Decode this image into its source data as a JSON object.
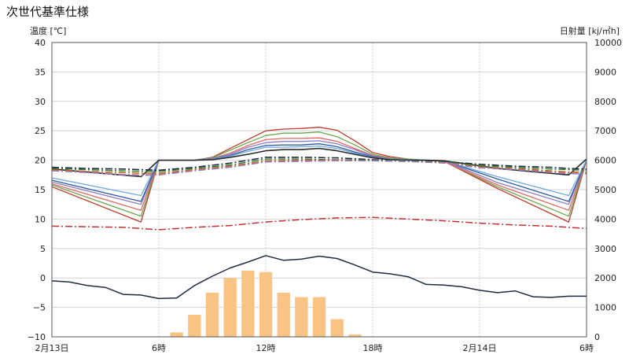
{
  "title": "次世代基準仕様",
  "chart_data": {
    "type": "line",
    "title": "次世代基準仕様",
    "ylabel_left": "温度 [℃]",
    "ylabel_right": "日射量 [kj/㎡h]",
    "ylim_left": [
      -10,
      40
    ],
    "ylim_right": [
      0,
      10000
    ],
    "yticks_left": [
      "40",
      "35",
      "30",
      "25",
      "20",
      "15",
      "10",
      "5",
      "0",
      "−5",
      "−10"
    ],
    "yticks_right": [
      "10000",
      "9000",
      "8000",
      "7000",
      "6000",
      "5000",
      "4000",
      "3000",
      "2000",
      "1000",
      "0"
    ],
    "xlim": [
      0,
      30
    ],
    "xticks": [
      {
        "x": 0,
        "label": "2月13日"
      },
      {
        "x": 6,
        "label": "6時"
      },
      {
        "x": 12,
        "label": "12時"
      },
      {
        "x": 18,
        "label": "18時"
      },
      {
        "x": 24,
        "label": "2月14日"
      },
      {
        "x": 30,
        "label": "6時"
      }
    ],
    "grid": true,
    "solar_bars": {
      "axis": "right",
      "color": "#f9c384",
      "x": [
        7,
        8,
        9,
        10,
        11,
        12,
        13,
        14,
        15,
        16,
        17
      ],
      "values": [
        150,
        750,
        1500,
        2000,
        2250,
        2200,
        1500,
        1350,
        1350,
        600,
        80
      ]
    },
    "series": [
      {
        "color": "#1f2a44",
        "style": "solid",
        "width": 1.5,
        "x": [
          0,
          1,
          2,
          3,
          4,
          5,
          6,
          7,
          8,
          9,
          10,
          11,
          12,
          13,
          14,
          15,
          16,
          17,
          18,
          19,
          20,
          21,
          22,
          23,
          24,
          25,
          26,
          27,
          28,
          29,
          30
        ],
        "y": [
          -0.5,
          -0.7,
          -1.3,
          -1.6,
          -2.8,
          -2.9,
          -3.5,
          -3.4,
          -1.3,
          0.3,
          1.7,
          2.7,
          3.8,
          3.0,
          3.2,
          3.7,
          3.3,
          2.2,
          1.0,
          0.7,
          0.2,
          -1.1,
          -1.2,
          -1.5,
          -2.1,
          -2.5,
          -2.2,
          -3.2,
          -3.3,
          -3.1,
          -3.1
        ]
      },
      {
        "color": "#c03030",
        "style": "dashdot",
        "width": 1.5,
        "x": [
          0,
          2,
          4,
          6,
          8,
          10,
          12,
          14,
          16,
          18,
          20,
          22,
          24,
          26,
          28,
          30
        ],
        "y": [
          8.8,
          8.7,
          8.6,
          8.2,
          8.6,
          8.9,
          9.5,
          9.9,
          10.2,
          10.3,
          10.0,
          9.7,
          9.3,
          9.0,
          8.8,
          8.4
        ]
      },
      {
        "color": "#c0392b",
        "style": "solid",
        "width": 1.3,
        "x": [
          0,
          5,
          6,
          8,
          9,
          10,
          11,
          12,
          13,
          14,
          15,
          16,
          17,
          18,
          19,
          20,
          21,
          22,
          25,
          29,
          30
        ],
        "y": [
          15.5,
          9.5,
          20,
          20,
          20.5,
          22,
          23.5,
          25,
          25.3,
          25.4,
          25.6,
          25.1,
          23.3,
          21.3,
          20.6,
          20.2,
          20,
          19.8,
          15.2,
          9.5,
          20
        ]
      },
      {
        "color": "#6aa84f",
        "style": "solid",
        "width": 1.3,
        "x": [
          0,
          5,
          6,
          8,
          9,
          10,
          11,
          12,
          13,
          14,
          15,
          16,
          17,
          18,
          19,
          20,
          21,
          22,
          25,
          29,
          30
        ],
        "y": [
          15.8,
          10.5,
          20,
          20,
          20.4,
          21.7,
          23.0,
          24.2,
          24.6,
          24.6,
          24.8,
          24.0,
          22.6,
          21.0,
          20.4,
          20.2,
          20,
          19.8,
          15.5,
          10.5,
          20
        ]
      },
      {
        "color": "#e06666",
        "style": "solid",
        "width": 1.3,
        "x": [
          0,
          5,
          6,
          8,
          9,
          10,
          11,
          12,
          13,
          14,
          15,
          16,
          17,
          18,
          19,
          20,
          21,
          22,
          25,
          29,
          30
        ],
        "y": [
          16.0,
          11.5,
          20,
          20,
          20.3,
          21.2,
          22.5,
          23.5,
          23.7,
          23.7,
          23.8,
          23.2,
          22.0,
          20.8,
          20.3,
          20.1,
          20,
          19.8,
          15.8,
          11.5,
          20
        ]
      },
      {
        "color": "#8e7cc3",
        "style": "solid",
        "width": 1.3,
        "x": [
          0,
          5,
          6,
          8,
          9,
          10,
          11,
          12,
          13,
          14,
          15,
          16,
          17,
          18,
          19,
          20,
          21,
          22,
          25,
          29,
          30
        ],
        "y": [
          16.3,
          12.5,
          20,
          20,
          20.3,
          21.0,
          22.2,
          23.0,
          23.2,
          23.2,
          23.3,
          22.8,
          21.8,
          20.7,
          20.2,
          20.1,
          20,
          19.9,
          16.2,
          12.5,
          20
        ]
      },
      {
        "color": "#2c5aa0",
        "style": "solid",
        "width": 1.3,
        "x": [
          0,
          5,
          6,
          8,
          9,
          10,
          11,
          12,
          13,
          14,
          15,
          16,
          17,
          18,
          19,
          20,
          21,
          22,
          25,
          29,
          30
        ],
        "y": [
          16.6,
          13.0,
          20,
          20,
          20.2,
          20.8,
          21.8,
          22.5,
          22.6,
          22.6,
          22.8,
          22.3,
          21.4,
          20.6,
          20.2,
          20.1,
          20,
          19.9,
          16.8,
          13.0,
          20
        ]
      },
      {
        "color": "#6fa8dc",
        "style": "solid",
        "width": 1.3,
        "x": [
          0,
          5,
          6,
          8,
          9,
          10,
          11,
          12,
          13,
          14,
          15,
          16,
          17,
          18,
          19,
          20,
          21,
          22,
          25,
          29,
          30
        ],
        "y": [
          17.0,
          14.0,
          20,
          20,
          20.2,
          20.7,
          21.5,
          22.2,
          22.2,
          22.3,
          22.4,
          22.0,
          21.2,
          20.5,
          20.2,
          20.1,
          20,
          19.9,
          17.2,
          14.0,
          20
        ]
      },
      {
        "color": "#2b2b2b",
        "style": "solid",
        "width": 1.6,
        "x": [
          0,
          5,
          6,
          8,
          9,
          10,
          11,
          12,
          13,
          14,
          15,
          16,
          17,
          18,
          19,
          20,
          21,
          22,
          25,
          29,
          30
        ],
        "y": [
          18.5,
          17.2,
          20,
          20,
          20.1,
          20.5,
          21.0,
          21.6,
          21.8,
          21.8,
          22.0,
          21.6,
          21.0,
          20.4,
          20.1,
          20.0,
          20,
          19.9,
          18.6,
          17.5,
          20.2
        ]
      },
      {
        "color": "#1f2a44",
        "style": "dashdot",
        "width": 1.6,
        "x": [
          0,
          2,
          4,
          5,
          6,
          8,
          10,
          12,
          14,
          16,
          18,
          20,
          22,
          24,
          26,
          28,
          29,
          30
        ],
        "y": [
          18.8,
          18.6,
          18.5,
          18.4,
          18.3,
          18.8,
          19.5,
          20.5,
          20.5,
          20.4,
          20.1,
          20.0,
          19.8,
          19.3,
          19.0,
          18.8,
          18.6,
          18.5
        ]
      },
      {
        "color": "#2e7d32",
        "style": "dashdot",
        "width": 1.4,
        "x": [
          0,
          2,
          4,
          5,
          6,
          8,
          10,
          12,
          14,
          16,
          18,
          20,
          22,
          24,
          26,
          28,
          29,
          30
        ],
        "y": [
          18.6,
          18.4,
          18.2,
          18.1,
          18.1,
          18.6,
          19.2,
          20.2,
          20.2,
          20.1,
          20.0,
          19.9,
          19.7,
          19.1,
          18.8,
          18.5,
          18.4,
          18.3
        ]
      },
      {
        "color": "#b45f06",
        "style": "dashdot",
        "width": 1.4,
        "x": [
          0,
          2,
          4,
          5,
          6,
          8,
          10,
          12,
          14,
          16,
          18,
          20,
          22,
          24,
          26,
          28,
          29,
          30
        ],
        "y": [
          18.4,
          18.1,
          17.9,
          17.8,
          17.8,
          18.4,
          19.0,
          19.9,
          20.0,
          20.0,
          19.9,
          19.8,
          19.6,
          18.9,
          18.6,
          18.2,
          18.0,
          18.0
        ]
      },
      {
        "color": "#e06666",
        "style": "dashdot",
        "width": 1.4,
        "x": [
          0,
          2,
          4,
          5,
          6,
          8,
          10,
          12,
          14,
          16,
          18,
          20,
          22,
          24,
          26,
          28,
          29,
          30
        ],
        "y": [
          18.3,
          18.0,
          17.6,
          17.5,
          17.6,
          18.3,
          18.9,
          19.8,
          19.9,
          20.0,
          19.9,
          19.8,
          19.6,
          18.8,
          18.5,
          18.0,
          17.8,
          17.8
        ]
      },
      {
        "color": "#8e7cc3",
        "style": "dashdot",
        "width": 1.4,
        "x": [
          0,
          2,
          4,
          5,
          6,
          8,
          10,
          12,
          14,
          16,
          18,
          20,
          22,
          24,
          26,
          28,
          29,
          30
        ],
        "y": [
          18.2,
          17.9,
          17.5,
          17.4,
          17.5,
          18.2,
          18.8,
          19.7,
          19.8,
          19.9,
          19.9,
          19.8,
          19.5,
          18.7,
          18.4,
          17.9,
          17.7,
          17.7
        ]
      }
    ]
  }
}
